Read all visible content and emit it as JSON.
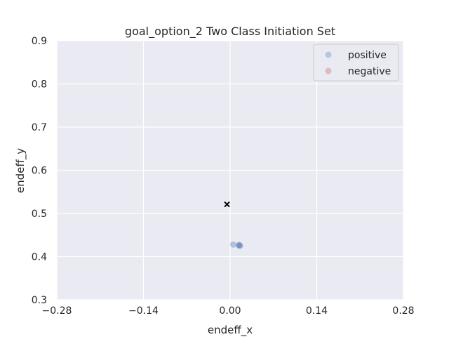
{
  "chart_data": {
    "type": "scatter",
    "title": "goal_option_2 Two Class Initiation Set",
    "xlabel": "endeff_x",
    "ylabel": "endeff_y",
    "xlim": [
      -0.28,
      0.28
    ],
    "ylim": [
      0.3,
      0.9
    ],
    "xticks": [
      -0.28,
      -0.14,
      0.0,
      0.14,
      0.28
    ],
    "xtick_labels": [
      "−0.28",
      "−0.14",
      "0.00",
      "0.14",
      "0.28"
    ],
    "yticks": [
      0.3,
      0.4,
      0.5,
      0.6,
      0.7,
      0.8,
      0.9
    ],
    "ytick_labels": [
      "0.3",
      "0.4",
      "0.5",
      "0.6",
      "0.7",
      "0.8",
      "0.9"
    ],
    "grid": true,
    "legend_position": "top-right",
    "series": [
      {
        "name": "positive",
        "color": "#4c72b0",
        "marker": "circle",
        "points": [
          {
            "x": 0.005,
            "y": 0.428
          },
          {
            "x": 0.014,
            "y": 0.426
          },
          {
            "x": 0.016,
            "y": 0.425
          },
          {
            "x": 0.015,
            "y": 0.427
          }
        ]
      },
      {
        "name": "negative",
        "color": "#c44e52",
        "marker": "circle",
        "points": []
      },
      {
        "color": "#000000",
        "marker": "x",
        "points": [
          {
            "x": -0.005,
            "y": 0.521
          }
        ]
      }
    ]
  }
}
